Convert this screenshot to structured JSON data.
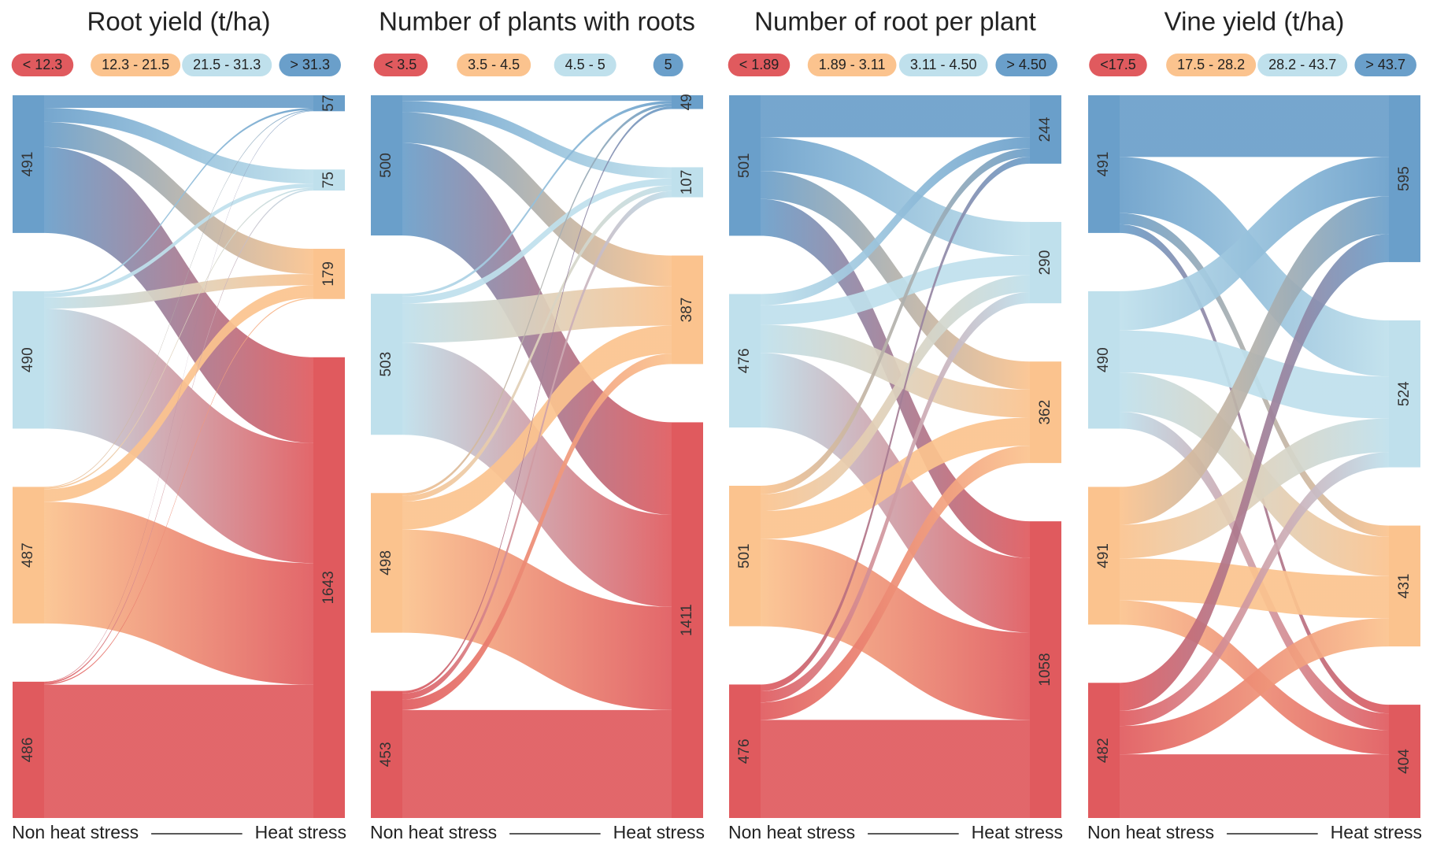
{
  "chart_data": [
    {
      "type": "sankey",
      "title": "Root yield (t/ha)",
      "legend": [
        "< 12.3",
        "12.3 - 21.5",
        "21.5 - 31.3",
        "> 31.3"
      ],
      "colors": [
        "#6a9fca",
        "#bfe0ec",
        "#fbc38e",
        "#e05a5e"
      ],
      "left_values": [
        491,
        490,
        487,
        486
      ],
      "right_values": [
        57,
        75,
        179,
        1643
      ],
      "flows": [
        [
          45,
          50,
          90,
          306
        ],
        [
          7,
          15,
          40,
          428
        ],
        [
          3,
          5,
          45,
          434
        ],
        [
          2,
          5,
          4,
          475
        ]
      ],
      "xlabel_left": "Non heat stress",
      "xlabel_right": "Heat stress"
    },
    {
      "type": "sankey",
      "title": "Number of plants with roots",
      "legend": [
        "< 3.5",
        "3.5 - 4.5",
        "4.5 - 5",
        "5"
      ],
      "colors": [
        "#6a9fca",
        "#bfe0ec",
        "#fbc38e",
        "#e05a5e"
      ],
      "left_values": [
        500,
        503,
        498,
        453
      ],
      "right_values": [
        49,
        107,
        387,
        1411
      ],
      "flows": [
        [
          20,
          40,
          110,
          330
        ],
        [
          10,
          25,
          140,
          328
        ],
        [
          10,
          20,
          100,
          368
        ],
        [
          9,
          22,
          37,
          385
        ]
      ],
      "xlabel_left": "Non heat stress",
      "xlabel_right": "Heat stress"
    },
    {
      "type": "sankey",
      "title": "Number of root per plant",
      "legend": [
        "< 1.89",
        "1.89 - 3.11",
        "3.11 - 4.50",
        "> 4.50"
      ],
      "colors": [
        "#6a9fca",
        "#bfe0ec",
        "#fbc38e",
        "#e05a5e"
      ],
      "left_values": [
        501,
        476,
        501,
        476
      ],
      "right_values": [
        244,
        290,
        362,
        1058
      ],
      "flows": [
        [
          150,
          120,
          100,
          131
        ],
        [
          40,
          70,
          100,
          266
        ],
        [
          30,
          60,
          100,
          311
        ],
        [
          24,
          40,
          62,
          350
        ]
      ],
      "xlabel_left": "Non heat stress",
      "xlabel_right": "Heat stress"
    },
    {
      "type": "sankey",
      "title": "Vine yield (t/ha)",
      "legend": [
        "<17.5",
        "17.5 - 28.2",
        "28.2 - 43.7",
        "> 43.7"
      ],
      "colors": [
        "#6a9fca",
        "#bfe0ec",
        "#fbc38e",
        "#e05a5e"
      ],
      "left_values": [
        491,
        490,
        491,
        482
      ],
      "right_values": [
        595,
        524,
        431,
        404
      ],
      "flows": [
        [
          220,
          200,
          40,
          31
        ],
        [
          140,
          150,
          140,
          60
        ],
        [
          135,
          120,
          150,
          86
        ],
        [
          100,
          54,
          101,
          227
        ]
      ],
      "xlabel_left": "Non heat stress",
      "xlabel_right": "Heat stress"
    }
  ]
}
